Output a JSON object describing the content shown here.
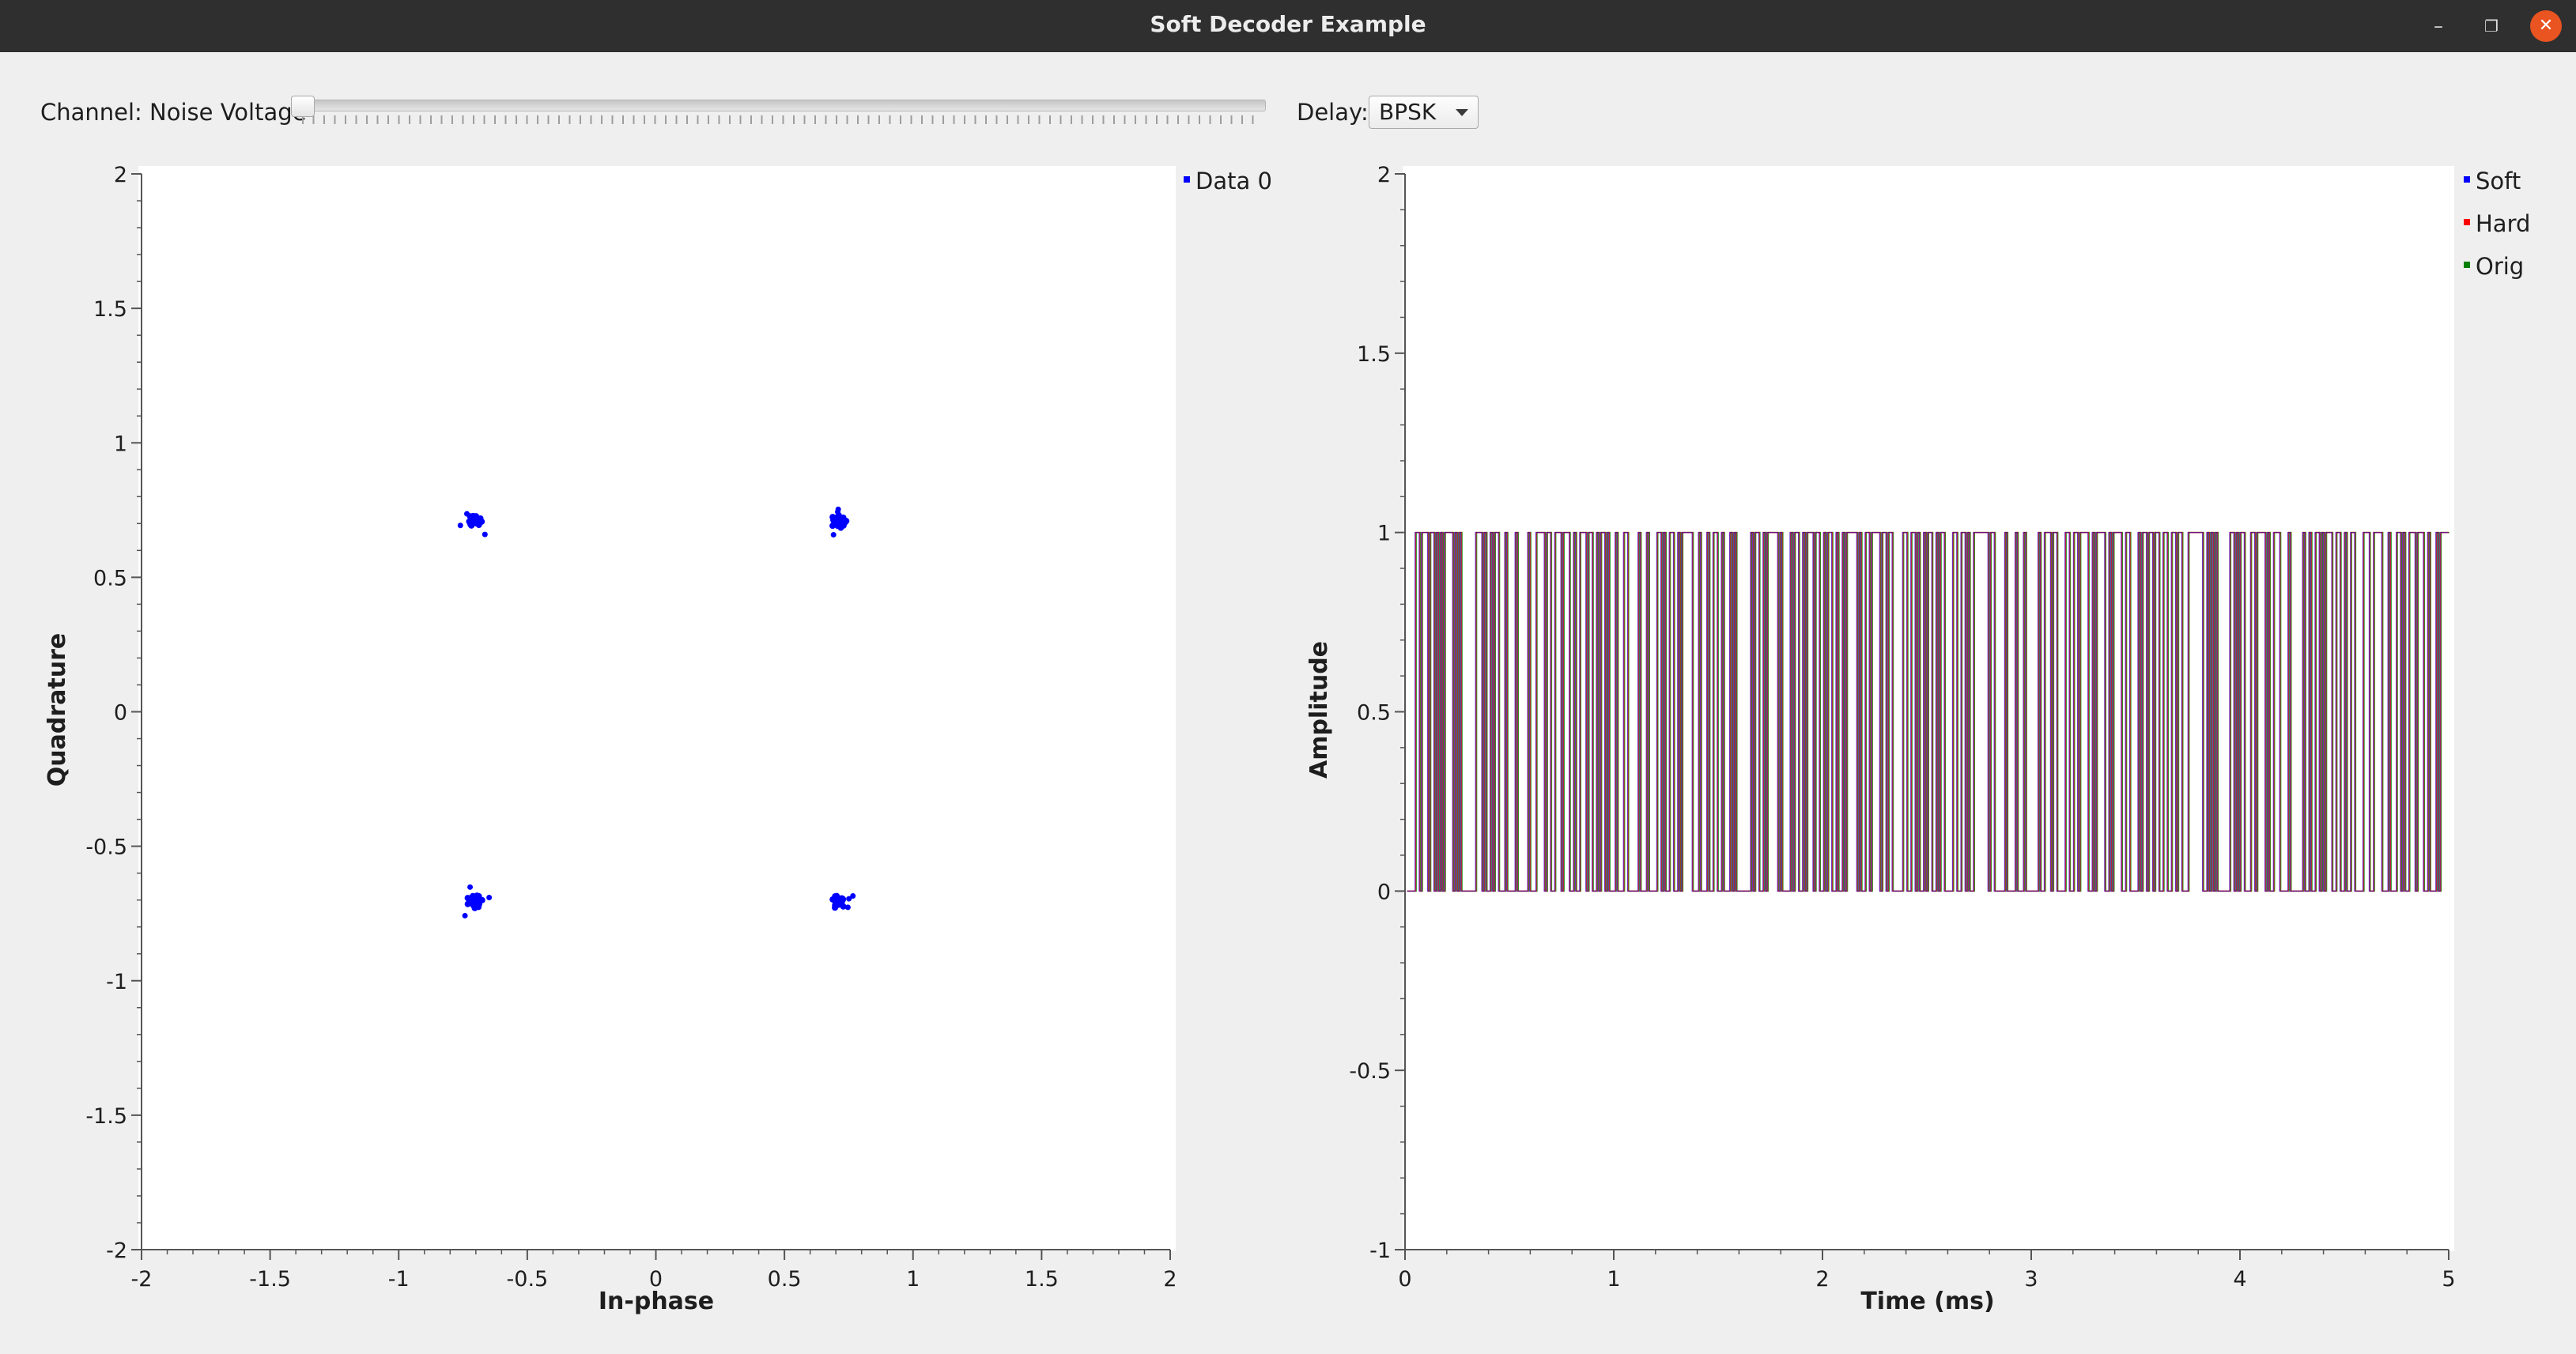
{
  "window": {
    "title": "Soft Decoder Example",
    "minimize_glyph": "–",
    "maximize_glyph": "❐",
    "close_glyph": "✕"
  },
  "controls": {
    "noise_label": "Channel: Noise Voltage",
    "noise_value": 0.0,
    "delay_label": "Delay:",
    "delay_value": "BPSK"
  },
  "constellation": {
    "xlabel": "In-phase",
    "ylabel": "Quadrature",
    "xlim": [
      -2,
      2
    ],
    "ylim": [
      -2,
      2
    ],
    "x_ticks": [
      "-2",
      "-1.5",
      "-1",
      "-0.5",
      "0",
      "0.5",
      "1",
      "1.5",
      "2"
    ],
    "y_ticks": [
      "2",
      "1.5",
      "1",
      "0.5",
      "0",
      "-0.5",
      "-1",
      "-1.5",
      "-2"
    ],
    "legend": [
      {
        "name": "Data 0",
        "color": "#0000ff"
      }
    ],
    "clusters": [
      {
        "x": -0.707,
        "y": 0.707
      },
      {
        "x": 0.707,
        "y": 0.707
      },
      {
        "x": -0.707,
        "y": -0.707
      },
      {
        "x": 0.707,
        "y": -0.707
      }
    ]
  },
  "time_plot": {
    "xlabel": "Time (ms)",
    "ylabel": "Amplitude",
    "xlim": [
      0,
      5
    ],
    "ylim": [
      -1,
      2
    ],
    "x_ticks": [
      "0",
      "1",
      "2",
      "3",
      "4",
      "5"
    ],
    "y_ticks": [
      "2",
      "1.5",
      "1",
      "0.5",
      "0",
      "-0.5",
      "-1"
    ],
    "series": [
      {
        "name": "Soft",
        "color": "#0000ff"
      },
      {
        "name": "Hard",
        "color": "#ff0000"
      },
      {
        "name": "Orig",
        "color": "#008000"
      }
    ]
  },
  "chart_data": [
    {
      "type": "scatter",
      "xlabel": "In-phase",
      "ylabel": "Quadrature",
      "xlim": [
        -2,
        2
      ],
      "ylim": [
        -2,
        2
      ],
      "legend": "top-right",
      "series": [
        {
          "name": "Data 0",
          "x": [
            -0.707,
            0.707,
            -0.707,
            0.707
          ],
          "y": [
            0.707,
            0.707,
            -0.707,
            -0.707
          ]
        }
      ]
    },
    {
      "type": "line",
      "xlabel": "Time (ms)",
      "ylabel": "Amplitude",
      "xlim": [
        0,
        5
      ],
      "ylim": [
        -1,
        2
      ],
      "legend": "top-right",
      "series": [
        {
          "name": "Soft",
          "values_range": [
            0,
            1
          ]
        },
        {
          "name": "Hard",
          "values_range": [
            0,
            1
          ]
        },
        {
          "name": "Orig",
          "values_range": [
            0,
            1
          ]
        }
      ]
    }
  ]
}
